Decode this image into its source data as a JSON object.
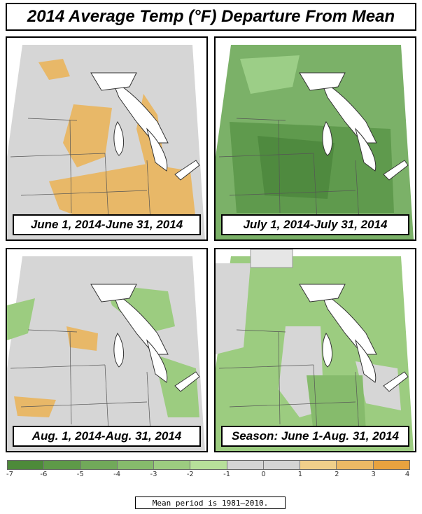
{
  "title": "2014 Average Temp (°F) Departure From Mean",
  "panels": [
    {
      "caption": "June 1, 2014-June 31, 2014"
    },
    {
      "caption": "July 1, 2014-July 31, 2014"
    },
    {
      "caption": "Aug. 1, 2014-Aug. 31, 2014"
    },
    {
      "caption": "Season: June 1-Aug. 31, 2014"
    }
  ],
  "legend": {
    "ticks": [
      "-7",
      "-6",
      "-5",
      "-4",
      "-3",
      "-2",
      "-1",
      "0",
      "1",
      "2",
      "3",
      "4"
    ],
    "colors": [
      "#4d8a3a",
      "#5e9a48",
      "#71a95a",
      "#86bb6c",
      "#9ccc80",
      "#b7e09a",
      "#d4d4d4",
      "#d4d4d4",
      "#f0cf8a",
      "#ecb965",
      "#e8a23f"
    ]
  },
  "mean_note": "Mean period is 1981–2010."
}
